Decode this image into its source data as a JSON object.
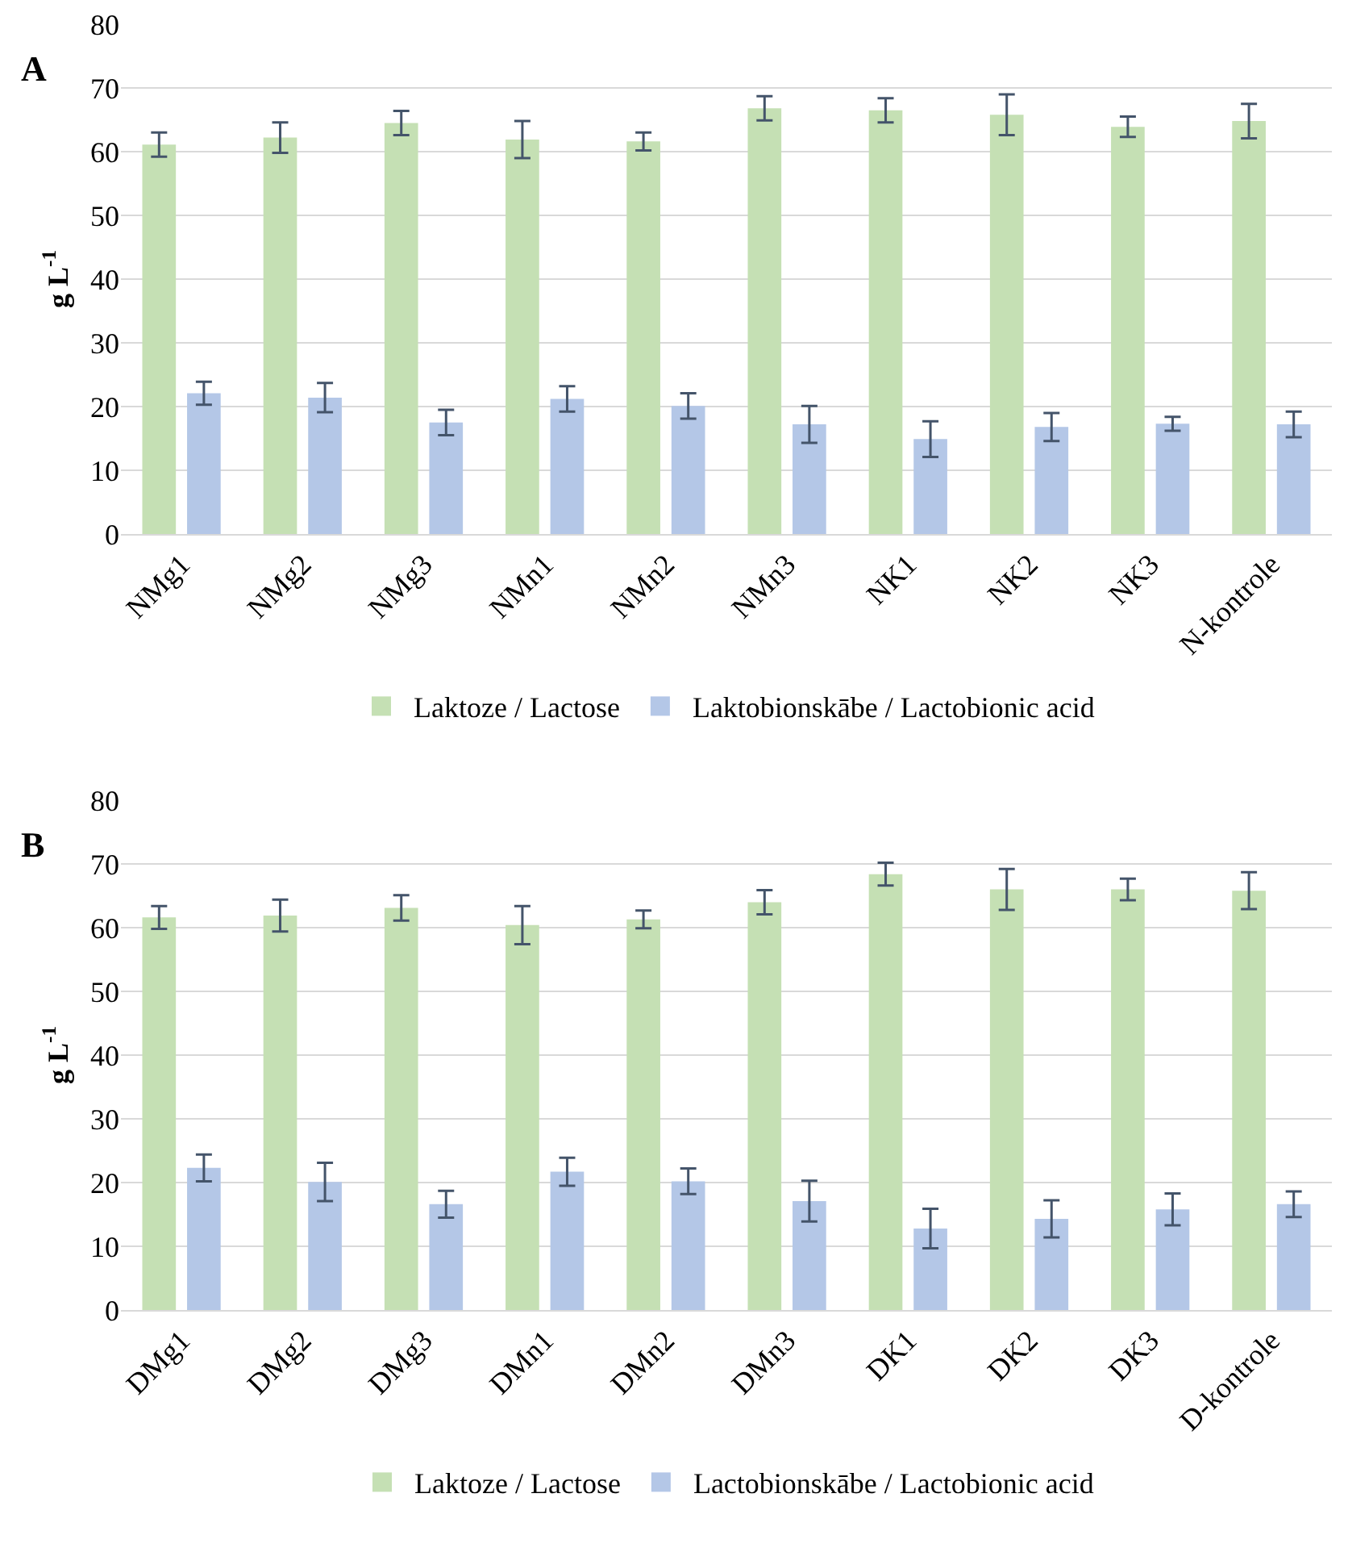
{
  "chart_data": [
    {
      "type": "bar",
      "ylabel": "g L$^{-1}$",
      "annotations": [
        "A"
      ],
      "categories": [
        "NMg1",
        "NMg2",
        "NMg3",
        "NMn1",
        "NMn2",
        "NMn3",
        "NK1",
        "NK2",
        "NK3",
        "N-kontrole"
      ],
      "series": [
        {
          "name": "Laktoze / Lactose",
          "color": "#c5e0b4",
          "values": [
            61.1,
            62.2,
            64.5,
            61.9,
            61.6,
            66.8,
            66.5,
            65.8,
            63.9,
            64.8
          ],
          "errors": [
            1.9,
            2.4,
            1.9,
            2.9,
            1.4,
            1.9,
            1.9,
            3.2,
            1.6,
            2.7
          ]
        },
        {
          "name": "Laktobionskābe / Lactobionic acid",
          "color": "#b4c7e7",
          "values": [
            22.1,
            21.4,
            17.5,
            21.2,
            20.1,
            17.2,
            14.9,
            16.8,
            17.3,
            17.2
          ],
          "errors": [
            1.8,
            2.3,
            2.0,
            2.0,
            2.0,
            2.9,
            2.8,
            2.2,
            1.1,
            2.0
          ]
        }
      ],
      "ylim": [
        0,
        80
      ],
      "yticks": [
        0,
        10,
        20,
        30,
        40,
        50,
        60,
        70,
        80
      ],
      "grid": "y",
      "legend": "bottom"
    },
    {
      "type": "bar",
      "ylabel": "g L$^{-1}$",
      "annotations": [
        "B"
      ],
      "categories": [
        "DMg1",
        "DMg2",
        "DMg3",
        "DMn1",
        "DMn2",
        "DMn3",
        "DK1",
        "DK2",
        "DK3",
        "D-kontrole"
      ],
      "series": [
        {
          "name": "Laktoze / Lactose",
          "color": "#c5e0b4",
          "values": [
            61.6,
            61.9,
            63.1,
            60.4,
            61.3,
            64.0,
            68.4,
            66.0,
            66.0,
            65.8
          ],
          "errors": [
            1.8,
            2.5,
            2.0,
            3.0,
            1.4,
            1.9,
            1.8,
            3.2,
            1.7,
            2.9
          ]
        },
        {
          "name": "Lactobionskābe / Lactobionic acid",
          "color": "#b4c7e7",
          "values": [
            22.3,
            20.1,
            16.6,
            21.7,
            20.2,
            17.1,
            12.8,
            14.3,
            15.8,
            16.6
          ],
          "errors": [
            2.1,
            3.0,
            2.1,
            2.2,
            2.0,
            3.2,
            3.1,
            2.9,
            2.5,
            2.0
          ]
        }
      ],
      "ylim": [
        0,
        80
      ],
      "yticks": [
        0,
        10,
        20,
        30,
        40,
        50,
        60,
        70,
        80
      ],
      "grid": "y",
      "legend": "bottom"
    }
  ]
}
